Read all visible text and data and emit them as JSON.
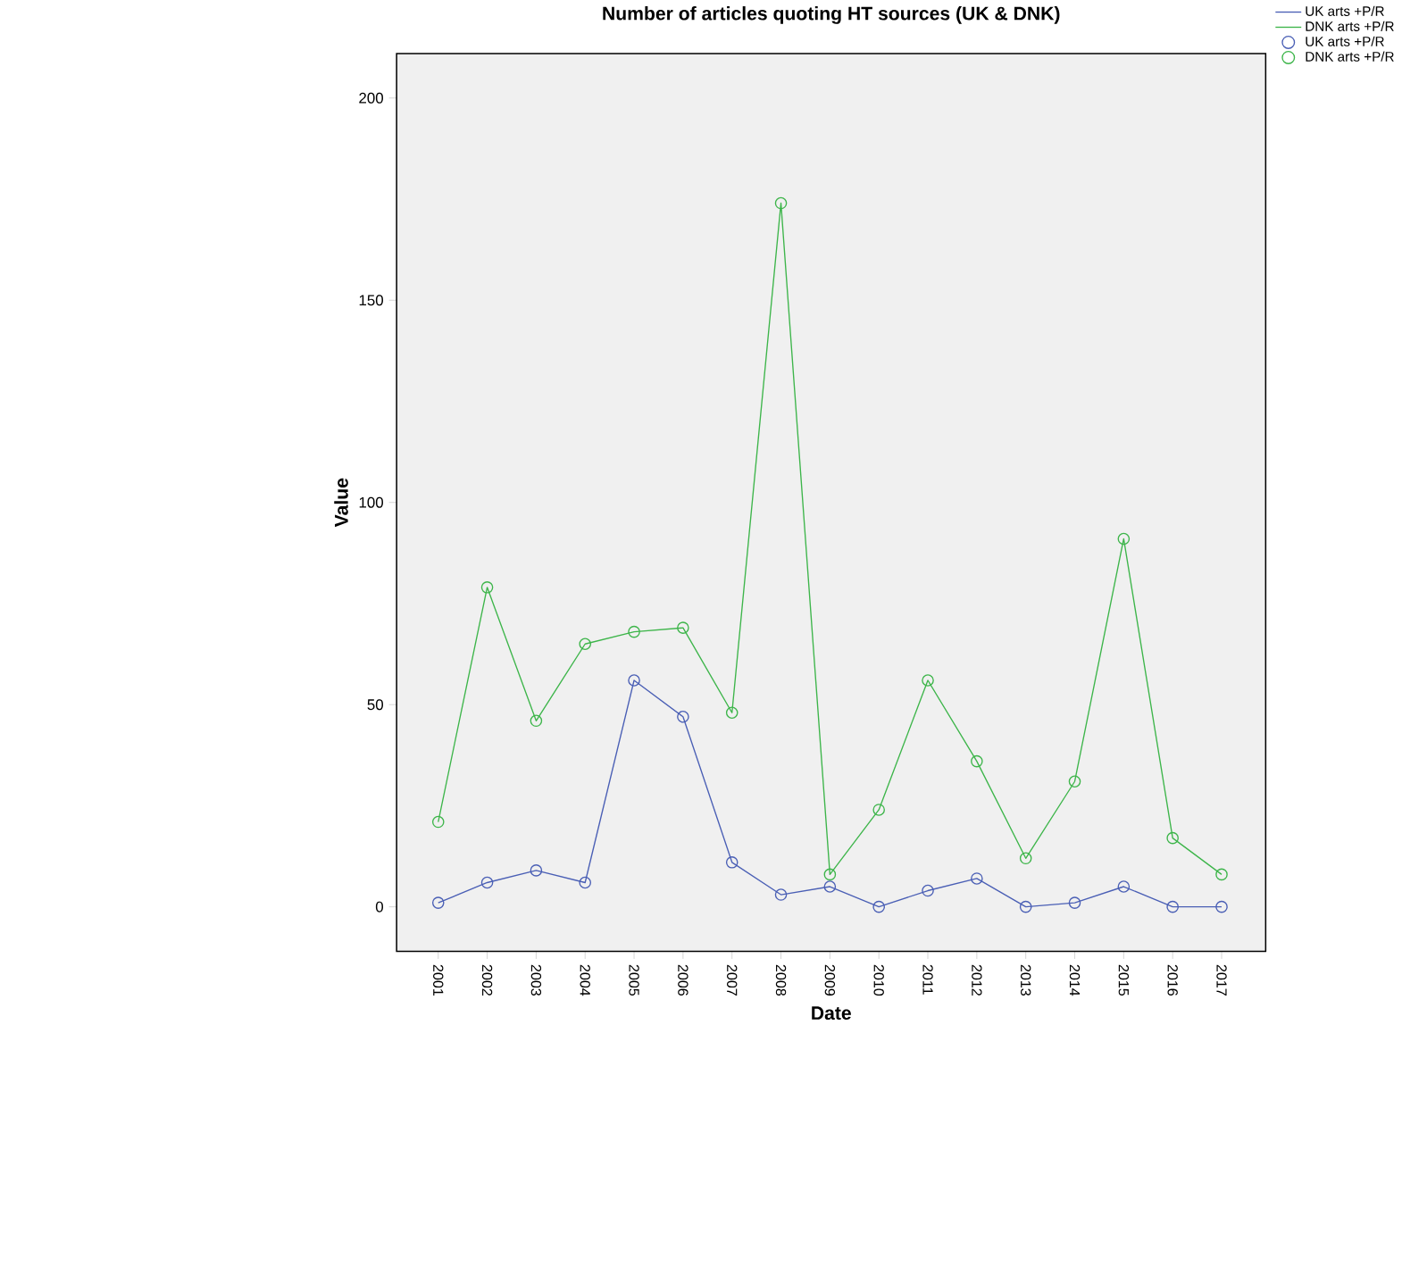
{
  "chart_data": {
    "type": "line",
    "title": "Number of articles quoting HT sources (UK & DNK)",
    "xlabel": "Date",
    "ylabel": "Value",
    "categories": [
      "2001",
      "2002",
      "2003",
      "2004",
      "2005",
      "2006",
      "2007",
      "2008",
      "2009",
      "2010",
      "2011",
      "2012",
      "2013",
      "2014",
      "2015",
      "2016",
      "2017"
    ],
    "series": [
      {
        "name": "UK arts +P/R",
        "color": "#4a5fb5",
        "values": [
          1,
          6,
          9,
          6,
          56,
          47,
          11,
          3,
          5,
          0,
          4,
          7,
          0,
          1,
          5,
          0,
          0
        ]
      },
      {
        "name": "DNK arts +P/R",
        "color": "#3db54a",
        "values": [
          21,
          79,
          46,
          65,
          68,
          69,
          48,
          174,
          8,
          24,
          56,
          36,
          12,
          31,
          91,
          17,
          8
        ]
      }
    ],
    "ylim": [
      -11,
      211
    ],
    "yticks": [
      0,
      50,
      100,
      150,
      200
    ],
    "grid": false,
    "legend": "top right",
    "marker": "circle",
    "line_style": "solid"
  }
}
